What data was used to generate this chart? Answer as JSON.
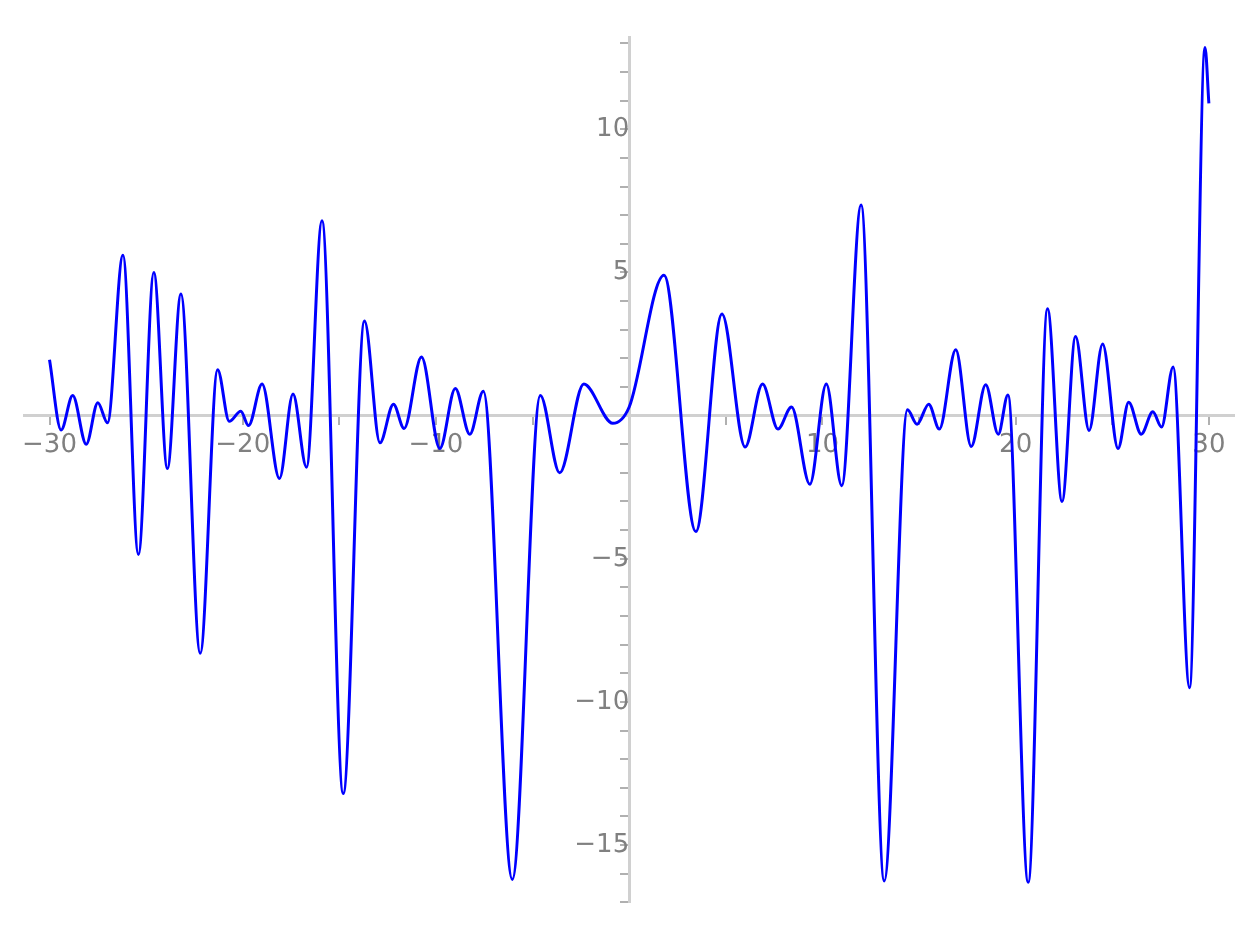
{
  "chart_data": {
    "type": "line",
    "x": [
      -30,
      -29.4,
      -28.8,
      -28.1,
      -27.5,
      -27,
      -26.2,
      -25.4,
      -24.6,
      -23.9,
      -23.2,
      -22.2,
      -21.3,
      -20.7,
      -20.1,
      -19.7,
      -19,
      -18.1,
      -17.4,
      -16.7,
      -15.9,
      -14.8,
      -13.7,
      -12.9,
      -12.2,
      -11.65,
      -10.75,
      -9.8,
      -9,
      -8.25,
      -7.55,
      -6.05,
      -4.6,
      -3.6,
      -2.35,
      -0.85,
      0,
      1.8,
      3.45,
      4.8,
      6,
      6.9,
      7.7,
      8.4,
      9.35,
      10.2,
      11,
      12,
      13.2,
      14.4,
      14.9,
      15.5,
      16.05,
      16.9,
      17.7,
      18.45,
      19.1,
      19.6,
      20.65,
      21.65,
      22.4,
      23.1,
      23.8,
      24.5,
      25.3,
      25.85,
      26.5,
      27.1,
      27.55,
      28.15,
      29,
      29.8,
      30
    ],
    "series": [
      {
        "color": "#0000ff",
        "values": [
          1.95,
          -0.5,
          0.7,
          -1,
          0.45,
          -0.25,
          5.6,
          -4.85,
          5,
          -1.85,
          4.25,
          -8.3,
          1.6,
          -0.2,
          0.15,
          -0.35,
          1.1,
          -2.2,
          0.75,
          -1.8,
          6.8,
          -13.2,
          3.3,
          -0.95,
          0.4,
          -0.45,
          2.05,
          -1.15,
          0.95,
          -0.65,
          0.85,
          -16.2,
          0.7,
          -2,
          1.1,
          -0.27,
          0.3,
          4.9,
          -4.05,
          3.55,
          -1.1,
          1.1,
          -0.47,
          0.3,
          -2.4,
          1.1,
          -2.45,
          7.35,
          -16.25,
          0.2,
          -0.3,
          0.4,
          -0.47,
          2.3,
          -1.08,
          1.08,
          -0.65,
          0.72,
          -16.3,
          3.73,
          -3,
          2.76,
          -0.52,
          2.5,
          -1.15,
          0.47,
          -0.65,
          0.13,
          -0.4,
          1.7,
          -9.5,
          12.85,
          10.9
        ]
      }
    ],
    "xlim": [
      -31.3,
      31.3
    ],
    "ylim": [
      -17,
      13.2
    ],
    "xticks": [
      -30,
      {
        "value": -25,
        "label": null
      },
      -20,
      {
        "value": -15,
        "label": null
      },
      -10,
      {
        "value": -5,
        "label": null
      },
      {
        "value": 0,
        "label": null
      },
      {
        "value": 5,
        "label": null
      },
      10,
      {
        "value": 15,
        "label": null
      },
      20,
      {
        "value": 25,
        "label": null
      },
      30
    ],
    "yticks": [
      {
        "value": -17,
        "label": null
      },
      {
        "value": -16,
        "label": null
      },
      -15,
      {
        "value": -14,
        "label": null
      },
      {
        "value": -13,
        "label": null
      },
      {
        "value": -12,
        "label": null
      },
      {
        "value": -11,
        "label": null
      },
      -10,
      {
        "value": -9,
        "label": null
      },
      {
        "value": -8,
        "label": null
      },
      {
        "value": -7,
        "label": null
      },
      {
        "value": -6,
        "label": null
      },
      -5,
      {
        "value": -4,
        "label": null
      },
      {
        "value": -3,
        "label": null
      },
      {
        "value": -2,
        "label": null
      },
      {
        "value": -1,
        "label": null
      },
      {
        "value": 0,
        "label": null
      },
      {
        "value": 1,
        "label": null
      },
      {
        "value": 2,
        "label": null
      },
      {
        "value": 3,
        "label": null
      },
      {
        "value": 4,
        "label": null
      },
      5,
      {
        "value": 6,
        "label": null
      },
      {
        "value": 7,
        "label": null
      },
      {
        "value": 8,
        "label": null
      },
      {
        "value": 9,
        "label": null
      },
      10,
      {
        "value": 11,
        "label": null
      },
      {
        "value": 12,
        "label": null
      },
      {
        "value": 13,
        "label": null
      }
    ]
  }
}
